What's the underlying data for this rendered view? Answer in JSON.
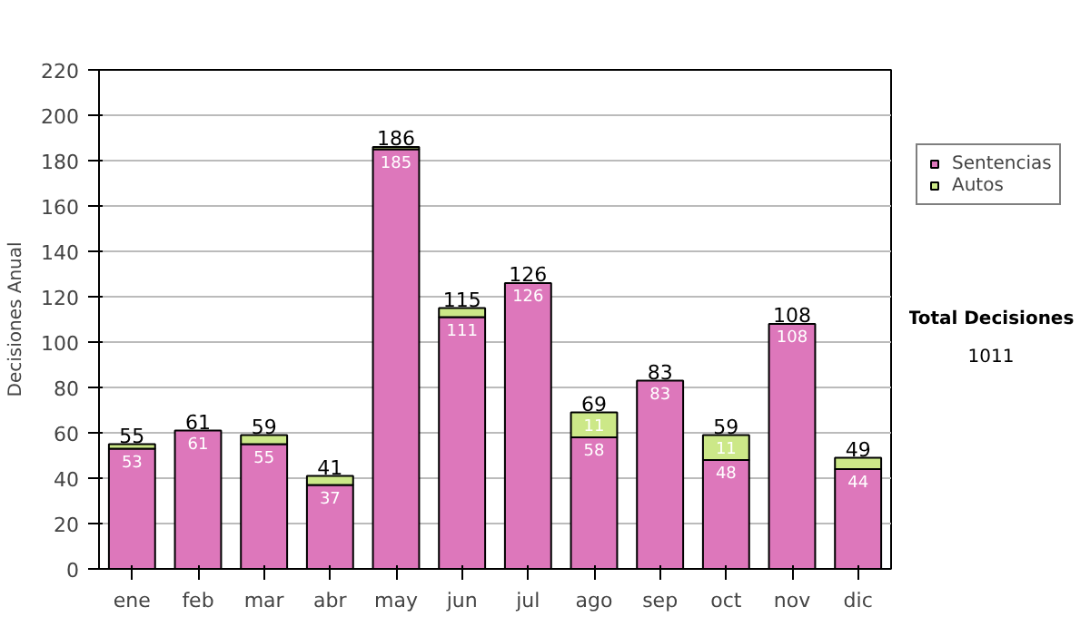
{
  "chart_data": {
    "type": "bar",
    "stacked": true,
    "ylabel": "Decisiones Anual",
    "categories": [
      "ene",
      "feb",
      "mar",
      "abr",
      "may",
      "jun",
      "jul",
      "ago",
      "sep",
      "oct",
      "nov",
      "dic"
    ],
    "series": [
      {
        "name": "Sentencias",
        "color": "#dd77bb",
        "values": [
          53,
          61,
          55,
          37,
          185,
          111,
          126,
          58,
          83,
          48,
          108,
          44
        ],
        "value_labels": [
          "53",
          "61",
          "55",
          "37",
          "185",
          "111",
          "126",
          "58",
          "83",
          "48",
          "108",
          "44"
        ]
      },
      {
        "name": "Autos",
        "color": "#cce888",
        "values": [
          2,
          0,
          4,
          4,
          1,
          4,
          0,
          11,
          0,
          11,
          0,
          5
        ],
        "value_labels": [
          null,
          null,
          null,
          null,
          null,
          null,
          null,
          "11",
          null,
          "11",
          null,
          null
        ]
      }
    ],
    "totals": [
      "55",
      "61",
      "59",
      "41",
      "186",
      "115",
      "126",
      "69",
      "83",
      "59",
      "108",
      "49"
    ],
    "ylim": [
      0,
      220
    ],
    "yticks": [
      0,
      20,
      40,
      60,
      80,
      100,
      120,
      140,
      160,
      180,
      200,
      220
    ],
    "grid": "y",
    "legend": "right",
    "annotations": [
      "Total Decisiones",
      "1011"
    ]
  }
}
